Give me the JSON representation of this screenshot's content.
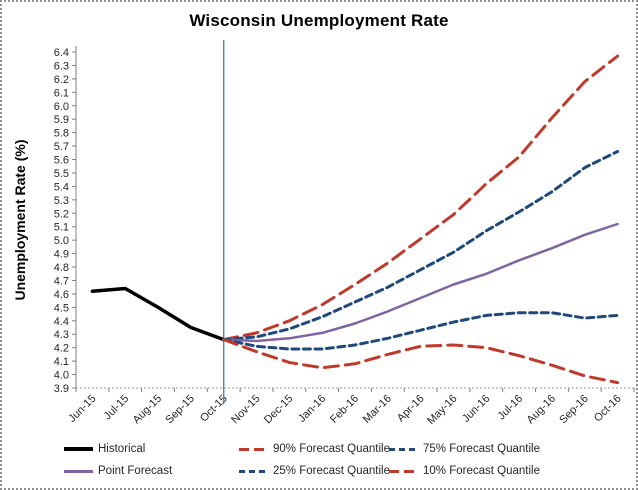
{
  "chart_data": {
    "type": "line",
    "title": "Wisconsin Unemployment Rate",
    "ylabel": "Unemployment Rate (%)",
    "xlabel": "",
    "ylim": [
      3.9,
      6.4
    ],
    "ytick_step": 0.1,
    "grid": false,
    "legend_position": "bottom",
    "categories": [
      "Jun-15",
      "Jul-15",
      "Aug-15",
      "Sep-15",
      "Oct-15",
      "Nov-15",
      "Dec-15",
      "Jan-16",
      "Feb-16",
      "Mar-16",
      "Apr-16",
      "May-16",
      "Jun-16",
      "Jul-16",
      "Aug-16",
      "Sep-16",
      "Oct-16"
    ],
    "vline": {
      "category": "Oct-15",
      "color": "#4F81BD",
      "meaning": "forecast start"
    },
    "series": [
      {
        "name": "Historical",
        "color": "#000000",
        "style": "solid",
        "width": 3.5,
        "values": [
          4.62,
          4.64,
          4.5,
          4.35,
          4.26,
          null,
          null,
          null,
          null,
          null,
          null,
          null,
          null,
          null,
          null,
          null,
          null
        ]
      },
      {
        "name": "90% Forecast Quantile",
        "color": "#C03A2B",
        "style": "long-dash",
        "width": 3,
        "values": [
          null,
          null,
          null,
          null,
          4.26,
          4.31,
          4.4,
          4.52,
          4.67,
          4.83,
          5.01,
          5.19,
          5.42,
          5.62,
          5.91,
          6.18,
          6.37
        ]
      },
      {
        "name": "75% Forecast Quantile",
        "color": "#1F497D",
        "style": "dash",
        "width": 3,
        "values": [
          null,
          null,
          null,
          null,
          4.26,
          4.28,
          4.34,
          4.43,
          4.54,
          4.65,
          4.78,
          4.91,
          5.07,
          5.21,
          5.36,
          5.54,
          5.66
        ]
      },
      {
        "name": "Point Forecast",
        "color": "#8064A2",
        "style": "solid",
        "width": 2.5,
        "values": [
          null,
          null,
          null,
          null,
          4.26,
          4.25,
          4.27,
          4.31,
          4.38,
          4.47,
          4.57,
          4.67,
          4.75,
          4.85,
          4.94,
          5.04,
          5.12
        ]
      },
      {
        "name": "25% Forecast Quantile",
        "color": "#1F497D",
        "style": "dash",
        "width": 3,
        "values": [
          null,
          null,
          null,
          null,
          4.26,
          4.21,
          4.19,
          4.19,
          4.22,
          4.27,
          4.33,
          4.39,
          4.44,
          4.46,
          4.46,
          4.42,
          4.44
        ]
      },
      {
        "name": "10% Forecast Quantile",
        "color": "#C03A2B",
        "style": "long-dash",
        "width": 3,
        "values": [
          null,
          null,
          null,
          null,
          4.26,
          4.17,
          4.09,
          4.05,
          4.08,
          4.15,
          4.21,
          4.22,
          4.2,
          4.14,
          4.07,
          3.99,
          3.94
        ]
      }
    ]
  },
  "legend": {
    "items": [
      {
        "label": "Historical",
        "color": "#000000",
        "style": "solid"
      },
      {
        "label": "90% Forecast Quantile",
        "color": "#C03A2B",
        "style": "long-dash"
      },
      {
        "label": "75% Forecast Quantile",
        "color": "#1F497D",
        "style": "dash"
      },
      {
        "label": "Point Forecast",
        "color": "#8064A2",
        "style": "solid"
      },
      {
        "label": "25% Forecast Quantile",
        "color": "#1F497D",
        "style": "dash"
      },
      {
        "label": "10% Forecast Quantile",
        "color": "#C03A2B",
        "style": "long-dash"
      }
    ]
  }
}
